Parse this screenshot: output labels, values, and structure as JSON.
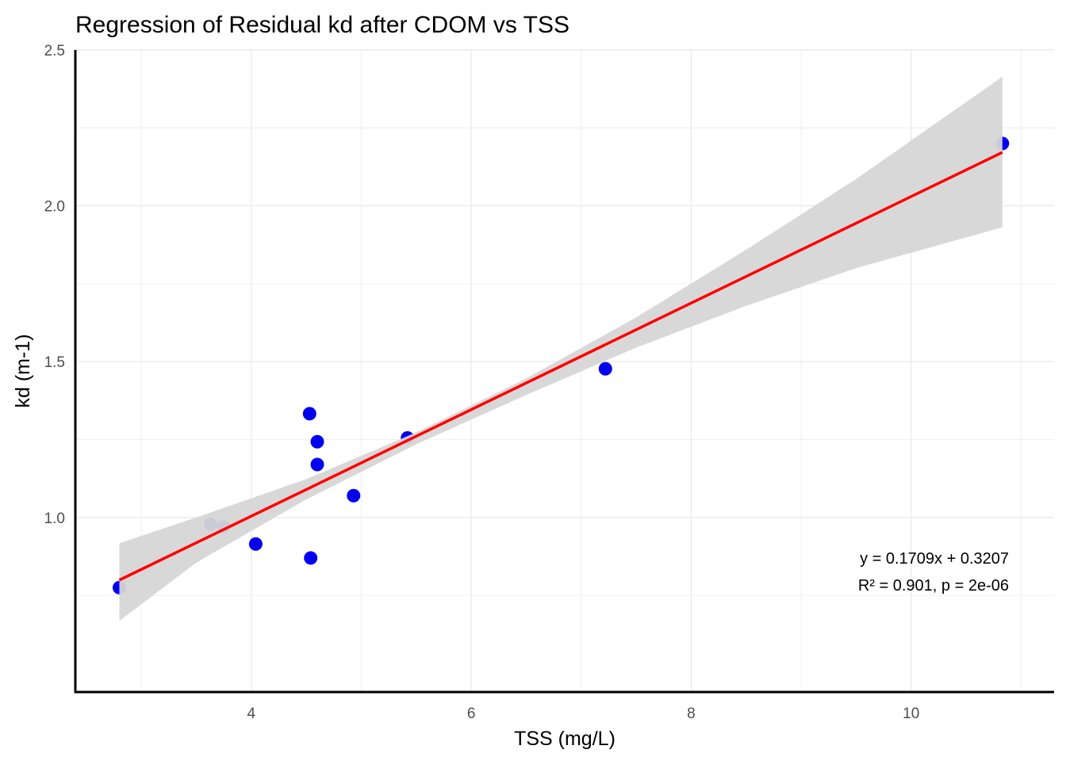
{
  "chart_data": {
    "type": "scatter",
    "title": "Regression of Residual kd after CDOM vs TSS",
    "xlabel": "TSS (mg/L)",
    "ylabel": "kd (m-1)",
    "xlim": [
      2.4,
      11.3
    ],
    "ylim": [
      0.44,
      2.5
    ],
    "x_ticks": [
      4,
      6,
      8,
      10
    ],
    "x_tick_labels": [
      "4",
      "6",
      "8",
      "10"
    ],
    "y_ticks": [
      1.0,
      1.5,
      2.0,
      2.5
    ],
    "y_tick_labels": [
      "1.0",
      "1.5",
      "2.0",
      "2.5"
    ],
    "grid": true,
    "points": {
      "x": [
        2.8,
        3.63,
        3.75,
        4.04,
        4.53,
        4.54,
        4.6,
        4.6,
        4.93,
        5.42,
        7.22,
        10.83
      ],
      "y": [
        0.775,
        0.978,
        0.97,
        0.915,
        1.333,
        0.87,
        1.243,
        1.17,
        1.07,
        1.255,
        1.477,
        2.2
      ],
      "color": "#0000ee"
    },
    "fit_line": {
      "slope": 0.1709,
      "intercept": 0.3207,
      "x_range": [
        2.8,
        10.83
      ],
      "color": "#ff0000"
    },
    "confidence_band": {
      "x": [
        2.8,
        3.5,
        4.5,
        5.5,
        6.5,
        7.5,
        8.5,
        9.5,
        10.83
      ],
      "lower": [
        0.668,
        0.855,
        1.058,
        1.235,
        1.393,
        1.545,
        1.679,
        1.8,
        1.931
      ],
      "upper": [
        0.917,
        1.0,
        1.123,
        1.273,
        1.446,
        1.642,
        1.859,
        2.086,
        2.414
      ],
      "color": "#d6d6d6"
    },
    "annotations": [
      "y = 0.1709x + 0.3207",
      "R² = 0.901, p = 2e-06"
    ]
  }
}
